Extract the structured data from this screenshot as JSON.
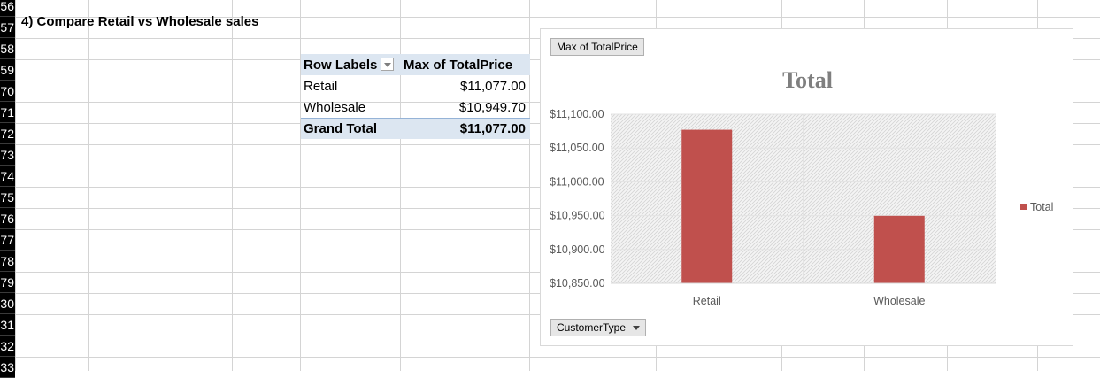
{
  "sheet": {
    "row_numbers": [
      "56",
      "57",
      "58",
      "59",
      "70",
      "71",
      "72",
      "73",
      "74",
      "75",
      "76",
      "77",
      "78",
      "79",
      "30",
      "31",
      "32",
      "33"
    ],
    "section_title": "4) Compare Retail vs Wholesale sales"
  },
  "pivot": {
    "row_labels_header": "Row Labels",
    "value_header": "Max of TotalPrice",
    "rows": [
      {
        "label": "Retail",
        "value": "$11,077.00"
      },
      {
        "label": "Wholesale",
        "value": "$10,949.70"
      }
    ],
    "grand_total_label": "Grand Total",
    "grand_total_value": "$11,077.00"
  },
  "chart_buttons": {
    "value_field": "Max of TotalPrice",
    "axis_field": "CustomerType"
  },
  "chart_data": {
    "type": "bar",
    "title": "Total",
    "categories": [
      "Retail",
      "Wholesale"
    ],
    "series": [
      {
        "name": "Total",
        "values": [
          11077.0,
          10949.7
        ],
        "color": "#c0504d"
      }
    ],
    "ylim": [
      10850,
      11100
    ],
    "yticks": [
      11100,
      11050,
      11000,
      10950,
      10900,
      10850
    ],
    "ytick_labels": [
      "$11,100.00",
      "$11,050.00",
      "$11,000.00",
      "$10,950.00",
      "$10,900.00",
      "$10,850.00"
    ],
    "xlabel": "",
    "ylabel": "",
    "legend": "right",
    "grid": true
  },
  "colors": {
    "bar": "#c0504d",
    "pivot_band": "#dce6f1",
    "gridline": "#e3e3e3"
  }
}
